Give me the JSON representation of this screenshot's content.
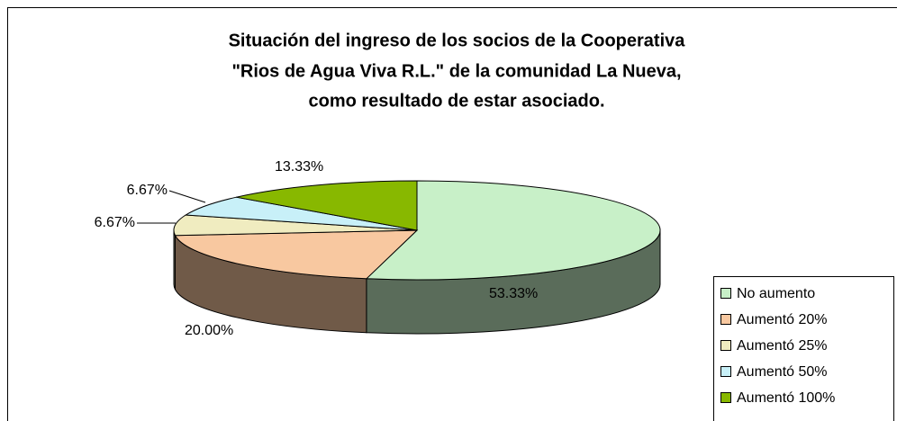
{
  "chart_data": {
    "type": "pie3d",
    "title": [
      "Situación del ingreso de los socios de la Cooperativa",
      "\"Rios de Agua Viva R.L.\" de la comunidad La Nueva,",
      "como resultado de estar asociado."
    ],
    "categories": [
      "No aumento",
      "Aumentó 20%",
      "Aumentó 25%",
      "Aumentó 50%",
      "Aumentó 100%"
    ],
    "values": [
      53.33,
      20.0,
      6.67,
      6.67,
      13.33
    ],
    "value_labels": [
      "53.33%",
      "20.00%",
      "6.67%",
      "6.67%",
      "13.33%"
    ],
    "colors": [
      "#c8f0c8",
      "#f8c8a0",
      "#f0ecc0",
      "#c8f0f8",
      "#88b800"
    ]
  }
}
